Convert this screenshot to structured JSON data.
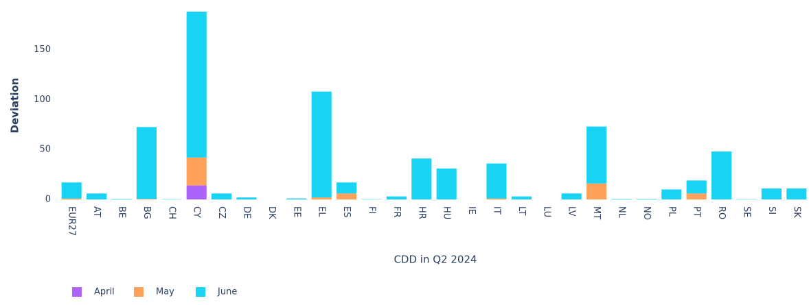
{
  "chart_data": {
    "type": "stacked_bar",
    "x_label": "CDD in Q2 2024",
    "y_label": "Deviation",
    "categories": [
      "EUR27",
      "AT",
      "BE",
      "BG",
      "CH",
      "CY",
      "CZ",
      "DE",
      "DK",
      "EE",
      "EL",
      "ES",
      "FI",
      "FR",
      "HR",
      "HU",
      "IE",
      "IT",
      "LT",
      "LU",
      "LV",
      "MT",
      "NL",
      "NO",
      "PL",
      "PT",
      "RO",
      "SE",
      "SI",
      "SK"
    ],
    "series": [
      {
        "name": "April",
        "color": "#ab63fa",
        "values": [
          0,
          0,
          0,
          0,
          0,
          14,
          0,
          0,
          0,
          0,
          0,
          0,
          0,
          0,
          0,
          0,
          0,
          0,
          0,
          0,
          0,
          0,
          0,
          0,
          0,
          0,
          0,
          0,
          0,
          0
        ]
      },
      {
        "name": "May",
        "color": "#ffa15a",
        "values": [
          1,
          0,
          0,
          0.5,
          0,
          28,
          0,
          0,
          0,
          0,
          2,
          6,
          0,
          0,
          0,
          0,
          0,
          1,
          0,
          0,
          0,
          16,
          0,
          0,
          0,
          6,
          0,
          0,
          0,
          0
        ]
      },
      {
        "name": "June",
        "color": "#19d3f3",
        "values": [
          16,
          6,
          0.5,
          72,
          0.3,
          146,
          6,
          2,
          0,
          1,
          106,
          11,
          0.3,
          3,
          41,
          31,
          0,
          35,
          3,
          0,
          6,
          57,
          0.5,
          0.5,
          10,
          13,
          48,
          0.3,
          11,
          11
        ]
      }
    ],
    "ylim": [
      0,
      188
    ],
    "yticks": [
      0,
      50,
      100,
      150
    ],
    "grid": false,
    "legend": "bottom-left"
  }
}
